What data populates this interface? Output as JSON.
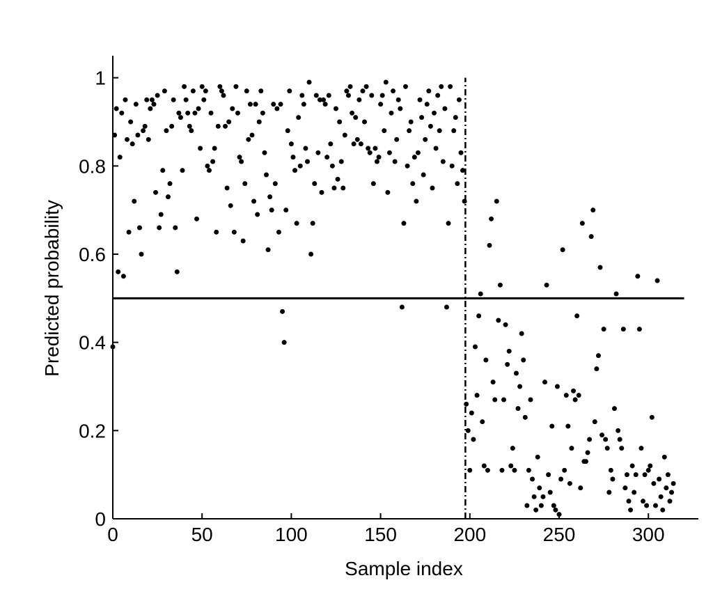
{
  "chart_data": {
    "type": "scatter",
    "xlabel": "Sample index",
    "ylabel": "Predicted probability",
    "color": "#000000",
    "xlim": [
      0,
      328
    ],
    "ylim": [
      0,
      1.05
    ],
    "xticks": [
      0,
      50,
      100,
      150,
      200,
      250,
      300
    ],
    "yticks": [
      0,
      0.2,
      0.4,
      0.6,
      0.8,
      1
    ],
    "threshold": {
      "y": 0.5,
      "x": [
        0,
        320
      ]
    },
    "split": {
      "x": 197.5,
      "y": [
        0,
        1
      ]
    },
    "x": [
      0,
      1,
      2,
      3,
      4,
      5,
      6,
      7,
      8,
      9,
      10,
      11,
      12,
      13,
      14,
      15,
      16,
      17,
      18,
      19,
      20,
      21,
      22,
      23,
      24,
      25,
      26,
      27,
      28,
      29,
      30,
      31,
      32,
      33,
      34,
      35,
      36,
      37,
      38,
      39,
      40,
      41,
      42,
      43,
      44,
      45,
      46,
      47,
      48,
      49,
      50,
      51,
      52,
      53,
      54,
      55,
      56,
      57,
      58,
      59,
      60,
      61,
      62,
      63,
      64,
      65,
      66,
      67,
      68,
      69,
      70,
      71,
      72,
      73,
      74,
      75,
      76,
      77,
      78,
      79,
      80,
      81,
      82,
      83,
      84,
      85,
      86,
      87,
      88,
      89,
      90,
      91,
      92,
      93,
      94,
      95,
      96,
      97,
      98,
      99,
      100,
      101,
      102,
      103,
      104,
      105,
      106,
      107,
      108,
      109,
      110,
      111,
      112,
      113,
      114,
      115,
      116,
      117,
      118,
      119,
      120,
      121,
      122,
      123,
      124,
      125,
      126,
      127,
      128,
      129,
      130,
      131,
      132,
      133,
      134,
      135,
      136,
      137,
      138,
      139,
      140,
      141,
      142,
      143,
      144,
      145,
      146,
      147,
      148,
      149,
      150,
      151,
      152,
      153,
      154,
      155,
      156,
      157,
      158,
      159,
      160,
      161,
      162,
      163,
      164,
      165,
      166,
      167,
      168,
      169,
      170,
      171,
      172,
      173,
      174,
      175,
      176,
      177,
      178,
      179,
      180,
      181,
      182,
      183,
      184,
      185,
      186,
      187,
      188,
      189,
      190,
      191,
      192,
      193,
      194,
      195,
      196,
      197,
      198,
      199,
      200,
      201,
      202,
      203,
      204,
      205,
      206,
      207,
      208,
      209,
      210,
      211,
      212,
      213,
      214,
      215,
      216,
      217,
      218,
      219,
      220,
      221,
      222,
      223,
      224,
      225,
      226,
      227,
      228,
      229,
      230,
      231,
      232,
      233,
      234,
      235,
      236,
      237,
      238,
      239,
      240,
      241,
      242,
      243,
      244,
      245,
      246,
      247,
      248,
      249,
      250,
      251,
      252,
      253,
      254,
      255,
      256,
      257,
      258,
      259,
      260,
      261,
      262,
      263,
      264,
      265,
      266,
      267,
      268,
      269,
      270,
      271,
      272,
      273,
      274,
      275,
      276,
      277,
      278,
      279,
      280,
      281,
      282,
      283,
      284,
      285,
      286,
      287,
      288,
      289,
      290,
      291,
      292,
      293,
      294,
      295,
      296,
      297,
      298,
      299,
      300,
      301,
      302,
      303,
      304,
      305,
      306,
      307,
      308,
      309,
      310,
      311,
      312,
      313,
      314
    ],
    "values": [
      0.39,
      0.87,
      0.93,
      0.56,
      0.82,
      0.92,
      0.55,
      0.95,
      0.86,
      0.65,
      0.9,
      0.85,
      0.72,
      0.94,
      0.87,
      0.66,
      0.6,
      0.88,
      0.89,
      0.95,
      0.86,
      0.93,
      0.95,
      0.94,
      0.74,
      0.96,
      0.66,
      0.69,
      0.79,
      0.97,
      0.88,
      0.73,
      0.76,
      0.89,
      0.95,
      0.66,
      0.56,
      0.92,
      0.91,
      0.79,
      0.98,
      0.95,
      0.92,
      0.89,
      0.88,
      0.97,
      0.92,
      0.68,
      0.93,
      0.84,
      0.98,
      0.95,
      0.97,
      0.8,
      0.79,
      0.92,
      0.81,
      0.84,
      0.65,
      0.89,
      0.98,
      0.97,
      0.96,
      0.89,
      0.75,
      0.9,
      0.71,
      0.93,
      0.65,
      0.98,
      0.92,
      0.82,
      0.81,
      0.63,
      0.76,
      0.97,
      0.86,
      0.94,
      0.87,
      0.72,
      0.94,
      0.69,
      0.9,
      0.97,
      0.92,
      0.83,
      0.78,
      0.61,
      0.73,
      0.7,
      0.94,
      0.76,
      0.93,
      0.65,
      0.94,
      0.47,
      0.4,
      0.7,
      0.88,
      0.97,
      0.85,
      0.82,
      0.79,
      0.67,
      0.91,
      0.8,
      0.96,
      0.94,
      0.84,
      0.81,
      0.99,
      0.6,
      0.67,
      0.76,
      0.96,
      0.83,
      0.95,
      0.74,
      0.95,
      0.94,
      0.82,
      0.96,
      0.85,
      0.8,
      0.75,
      0.93,
      0.77,
      0.9,
      0.81,
      0.75,
      0.87,
      0.97,
      0.96,
      0.98,
      0.92,
      0.85,
      0.91,
      0.86,
      0.95,
      0.85,
      0.97,
      0.9,
      0.98,
      0.84,
      0.83,
      0.96,
      0.76,
      0.84,
      0.81,
      0.82,
      0.94,
      0.96,
      0.88,
      0.99,
      0.74,
      0.83,
      0.92,
      0.97,
      0.81,
      0.86,
      0.95,
      0.93,
      0.48,
      0.67,
      0.98,
      0.8,
      0.88,
      0.9,
      0.76,
      0.82,
      0.72,
      0.83,
      0.95,
      0.91,
      0.78,
      0.86,
      0.94,
      0.97,
      0.89,
      0.75,
      0.92,
      0.84,
      0.96,
      0.88,
      0.98,
      0.81,
      0.93,
      0.48,
      0.67,
      0.98,
      0.8,
      0.88,
      0.91,
      0.76,
      0.95,
      0.83,
      0.79,
      0.72,
      0.26,
      0.2,
      0.11,
      0.24,
      0.18,
      0.39,
      0.28,
      0.46,
      0.51,
      0.22,
      0.12,
      0.36,
      0.11,
      0.62,
      0.68,
      0.31,
      0.27,
      0.72,
      0.45,
      0.53,
      0.11,
      0.27,
      0.44,
      0.35,
      0.38,
      0.12,
      0.16,
      0.11,
      0.33,
      0.25,
      0.3,
      0.42,
      0.36,
      0.23,
      0.03,
      0.11,
      0.27,
      0.09,
      0.05,
      0.02,
      0.14,
      0.07,
      0.03,
      0.05,
      0.31,
      0.53,
      0.1,
      0.06,
      0.21,
      0.03,
      0.02,
      0.3,
      0.01,
      0.09,
      0.61,
      0.11,
      0.28,
      0.21,
      0.08,
      0.16,
      0.29,
      0.27,
      0.46,
      0.28,
      0.07,
      0.67,
      0.13,
      0.13,
      0.15,
      0.18,
      0.64,
      0.7,
      0.22,
      0.34,
      0.37,
      0.57,
      0.19,
      0.43,
      0.18,
      0.16,
      0.06,
      0.11,
      0.09,
      0.25,
      0.51,
      0.2,
      0.18,
      0.16,
      0.43,
      0.07,
      0.1,
      0.04,
      0.02,
      0.12,
      0.06,
      0.1,
      0.55,
      0.43,
      0.16,
      0.04,
      0.1,
      0.03,
      0.11,
      0.12,
      0.23,
      0.08,
      0.03,
      0.54,
      0.09,
      0.05,
      0.02,
      0.14,
      0.07,
      0.1,
      0.04,
      0.06,
      0.08
    ]
  }
}
